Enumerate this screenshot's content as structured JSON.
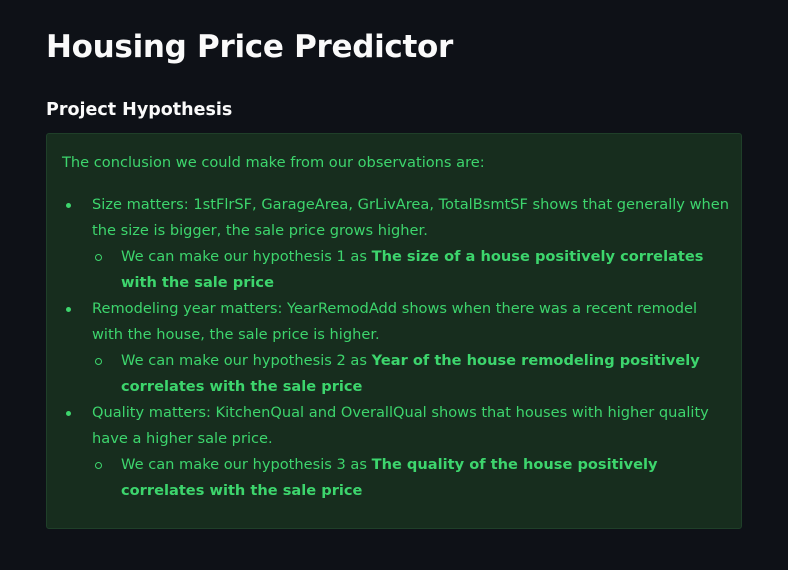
{
  "page": {
    "title": "Housing Price Predictor",
    "section_heading": "Project Hypothesis"
  },
  "callout": {
    "intro": "The conclusion we could make from our observations are:",
    "findings": [
      {
        "text": "Size matters: 1stFlrSF, GarageArea, GrLivArea, TotalBsmtSF shows that generally when the size is bigger, the sale price grows higher.",
        "hypothesis_prefix": "We can make our hypothesis 1 as ",
        "hypothesis_strong": "The size of a house positively correlates with the sale price"
      },
      {
        "text": "Remodeling year matters: YearRemodAdd shows when there was a recent remodel with the house, the sale price is higher.",
        "hypothesis_prefix": "We can make our hypothesis 2 as ",
        "hypothesis_strong": "Year of the house remodeling positively correlates with the sale price"
      },
      {
        "text": "Quality matters: KitchenQual and OverallQual shows that houses with higher quality have a higher sale price.",
        "hypothesis_prefix": "We can make our hypothesis 3 as ",
        "hypothesis_strong": "The quality of the house positively correlates with the sale price"
      }
    ]
  },
  "colors": {
    "background": "#0e1117",
    "text": "#fafafa",
    "success_bg": "#172d1e",
    "success_text": "#3dd56d"
  }
}
